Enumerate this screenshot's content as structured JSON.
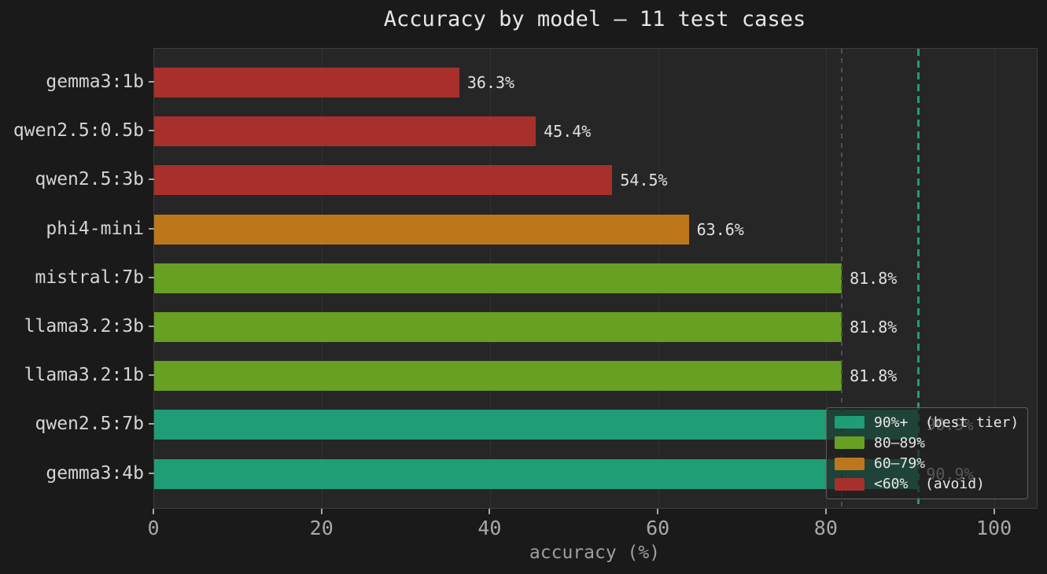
{
  "figure": {
    "background": "#1a1a1a",
    "plot_background": "#262626",
    "grid_color": "#313131"
  },
  "chart_data": {
    "type": "bar",
    "orientation": "horizontal",
    "title": "Accuracy by model — 11 test cases",
    "xlabel": "accuracy (%)",
    "xlim": [
      0,
      105
    ],
    "x_ticks": [
      0,
      20,
      40,
      60,
      80,
      100
    ],
    "grid": "vertical",
    "bars": [
      {
        "label": "gemma3:1b",
        "value": 36.3,
        "value_label": "36.3%",
        "color": "#a7302c",
        "tier": "<60%"
      },
      {
        "label": "qwen2.5:0.5b",
        "value": 45.4,
        "value_label": "45.4%",
        "color": "#a7302c",
        "tier": "<60%"
      },
      {
        "label": "qwen2.5:3b",
        "value": 54.5,
        "value_label": "54.5%",
        "color": "#a7302c",
        "tier": "<60%"
      },
      {
        "label": "phi4-mini",
        "value": 63.6,
        "value_label": "63.6%",
        "color": "#bc771a",
        "tier": "60—79%"
      },
      {
        "label": "mistral:7b",
        "value": 81.8,
        "value_label": "81.8%",
        "color": "#67a022",
        "tier": "80—89%"
      },
      {
        "label": "llama3.2:3b",
        "value": 81.8,
        "value_label": "81.8%",
        "color": "#67a022",
        "tier": "80—89%"
      },
      {
        "label": "llama3.2:1b",
        "value": 81.8,
        "value_label": "81.8%",
        "color": "#67a022",
        "tier": "80—89%"
      },
      {
        "label": "qwen2.5:7b",
        "value": 90.9,
        "value_label": "90.9%",
        "color": "#1f9d76",
        "tier": "90%+"
      },
      {
        "label": "gemma3:4b",
        "value": 90.9,
        "value_label": "90.9%",
        "color": "#1f9d76",
        "tier": "90%+"
      }
    ],
    "reference_lines": [
      {
        "value": 81.8,
        "color": "#4f4f4f",
        "style": "dashed",
        "width": 2
      },
      {
        "value": 90.9,
        "color": "#1f9d76",
        "style": "dashed",
        "width": 3
      }
    ],
    "legend": {
      "position": "lower right",
      "items": [
        {
          "label": "90%+  (best tier)",
          "color": "#1f9d76"
        },
        {
          "label": "80—89%",
          "color": "#67a022"
        },
        {
          "label": "60—79%",
          "color": "#bc771a"
        },
        {
          "label": "<60%  (avoid)",
          "color": "#a7302c"
        }
      ]
    }
  }
}
